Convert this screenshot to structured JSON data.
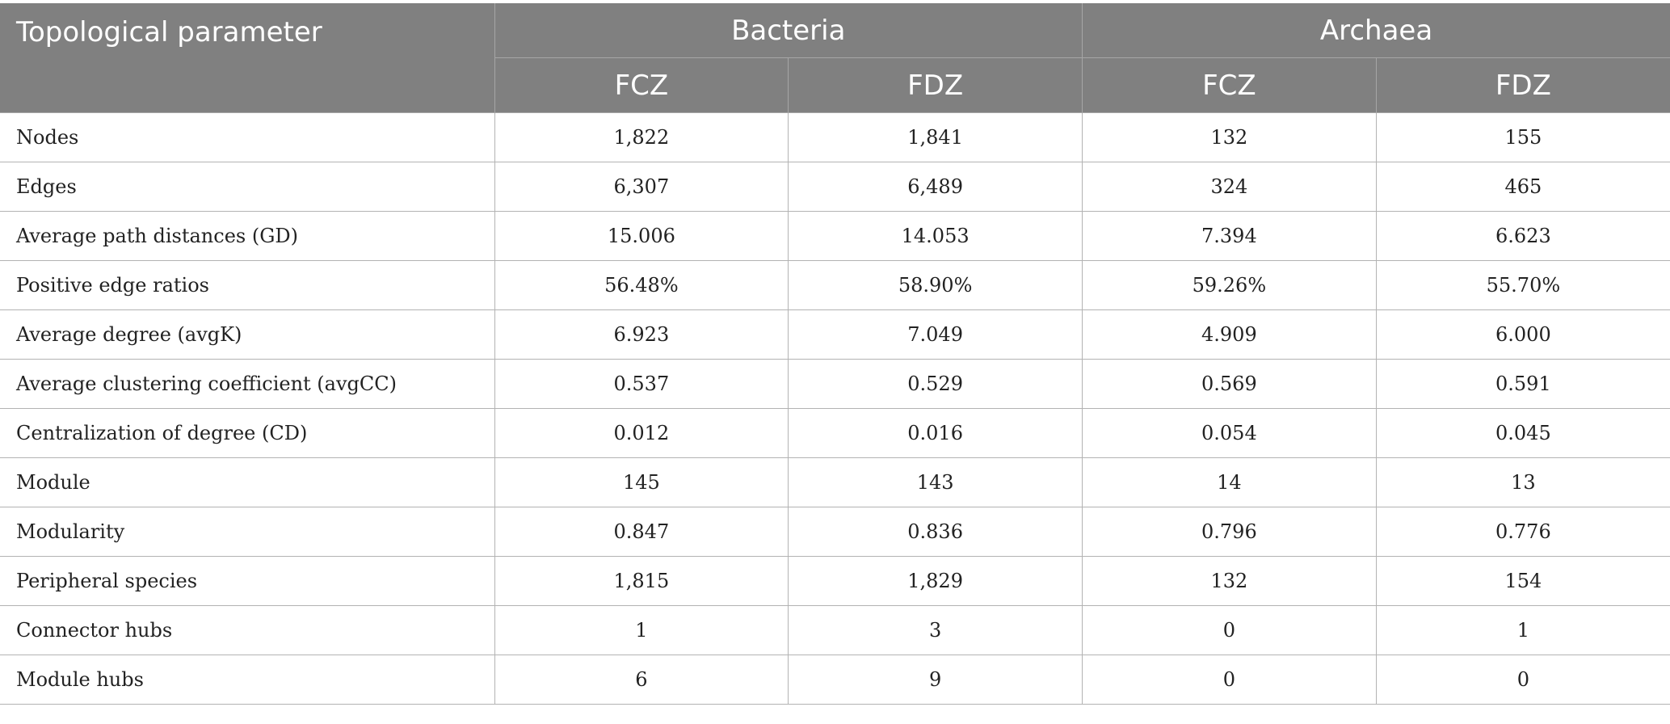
{
  "table": {
    "header": {
      "param_label": "Topological parameter",
      "groups": [
        "Bacteria",
        "Archaea"
      ],
      "sub": [
        "FCZ",
        "FDZ",
        "FCZ",
        "FDZ"
      ]
    },
    "rows": [
      {
        "label": "Nodes",
        "values": [
          "1,822",
          "1,841",
          "132",
          "155"
        ]
      },
      {
        "label": "Edges",
        "values": [
          "6,307",
          "6,489",
          "324",
          "465"
        ]
      },
      {
        "label": "Average path distances (GD)",
        "values": [
          "15.006",
          "14.053",
          "7.394",
          "6.623"
        ]
      },
      {
        "label": "Positive edge ratios",
        "values": [
          "56.48%",
          "58.90%",
          "59.26%",
          "55.70%"
        ]
      },
      {
        "label": "Average degree (avgK)",
        "values": [
          "6.923",
          "7.049",
          "4.909",
          "6.000"
        ]
      },
      {
        "label": "Average clustering coefficient (avgCC)",
        "values": [
          "0.537",
          "0.529",
          "0.569",
          "0.591"
        ]
      },
      {
        "label": "Centralization of degree (CD)",
        "values": [
          "0.012",
          "0.016",
          "0.054",
          "0.045"
        ]
      },
      {
        "label": "Module",
        "values": [
          "145",
          "143",
          "14",
          "13"
        ]
      },
      {
        "label": "Modularity",
        "values": [
          "0.847",
          "0.836",
          "0.796",
          "0.776"
        ]
      },
      {
        "label": "Peripheral species",
        "values": [
          "1,815",
          "1,829",
          "132",
          "154"
        ]
      },
      {
        "label": "Connector hubs",
        "values": [
          "1",
          "3",
          "0",
          "1"
        ]
      },
      {
        "label": "Module hubs",
        "values": [
          "6",
          "9",
          "0",
          "0"
        ]
      }
    ]
  },
  "colors": {
    "header_bg": "#808080",
    "header_text": "#ffffff",
    "grid": "#b3b3b3"
  }
}
